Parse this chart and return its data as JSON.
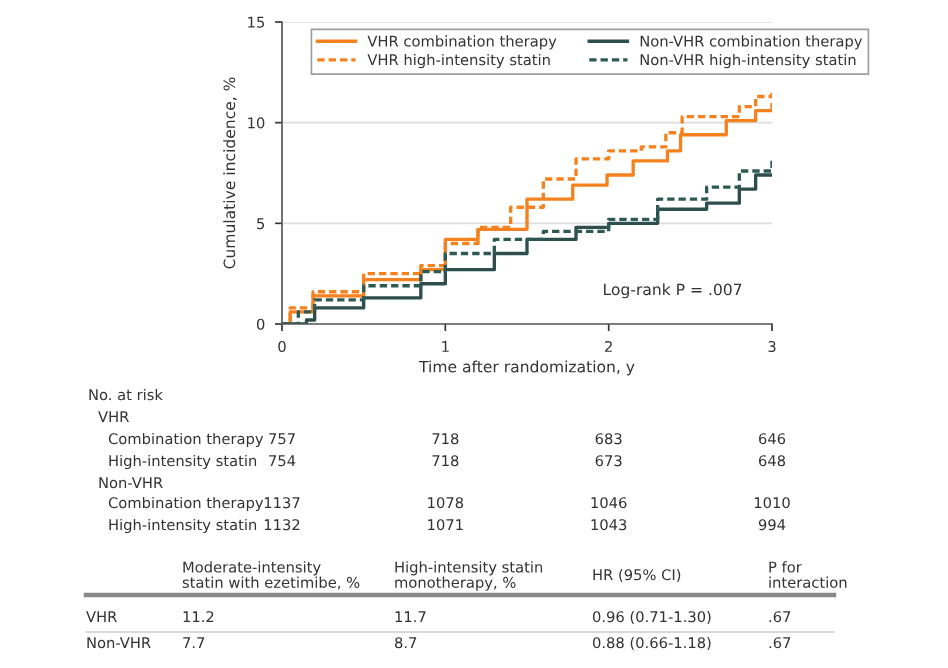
{
  "chart_data": {
    "type": "step",
    "xlabel": "Time after randomization, y",
    "ylabel": "Cumulative incidence, %",
    "xlim": [
      0,
      3
    ],
    "xticks": [
      0,
      1,
      2,
      3
    ],
    "ylim": [
      0,
      15
    ],
    "yticks": [
      0,
      5,
      10,
      15
    ],
    "grid": "y",
    "legend": "top",
    "series": [
      {
        "name": "VHR combination therapy",
        "color": "#f5821f",
        "line_style": "solid",
        "x": [
          0,
          0.05,
          0.19,
          0.5,
          0.85,
          1.0,
          1.2,
          1.5,
          1.78,
          1.99,
          2.15,
          2.36,
          2.44,
          2.72,
          2.9,
          3.0
        ],
        "values": [
          0,
          0.6,
          1.4,
          2.2,
          2.7,
          4.2,
          4.7,
          6.2,
          6.9,
          7.4,
          8.1,
          8.6,
          9.4,
          10.1,
          10.6,
          10.9
        ]
      },
      {
        "name": "VHR high-intensity statin",
        "color": "#f5821f",
        "line_style": "dashed",
        "x": [
          0,
          0.05,
          0.19,
          0.5,
          0.85,
          1.0,
          1.2,
          1.4,
          1.6,
          1.8,
          2.0,
          2.2,
          2.35,
          2.45,
          2.8,
          2.9,
          3.0
        ],
        "values": [
          0,
          0.8,
          1.6,
          2.5,
          2.9,
          4.0,
          4.8,
          5.8,
          7.2,
          8.2,
          8.6,
          8.8,
          9.5,
          10.3,
          10.8,
          11.3,
          11.6
        ]
      },
      {
        "name": "Non-VHR combination therapy",
        "color": "#2e4d4d",
        "line_style": "solid",
        "x": [
          0,
          0.15,
          0.2,
          0.5,
          0.85,
          1.0,
          1.3,
          1.5,
          1.8,
          2.0,
          2.3,
          2.6,
          2.8,
          2.9,
          3.0
        ],
        "values": [
          0,
          0.2,
          0.8,
          1.3,
          2.0,
          2.7,
          3.5,
          4.2,
          4.8,
          5.0,
          5.7,
          6.0,
          6.7,
          7.4,
          7.4
        ]
      },
      {
        "name": "Non-VHR high-intensity statin",
        "color": "#2e5a55",
        "line_style": "dashed",
        "x": [
          0,
          0.1,
          0.2,
          0.5,
          0.85,
          1.0,
          1.3,
          1.6,
          2.0,
          2.3,
          2.6,
          2.8,
          3.0
        ],
        "values": [
          0,
          0.6,
          1.2,
          1.9,
          2.6,
          3.5,
          4.2,
          4.6,
          5.2,
          6.2,
          6.8,
          7.6,
          8.2
        ]
      }
    ],
    "annotations": [
      "Log-rank P = .007",
      "No. at risk",
      "VHR",
      "Combination therapy",
      "757",
      "718",
      "683",
      "646",
      "High-intensity statin",
      "754",
      "718",
      "673",
      "648",
      "Non-VHR",
      "Combination therapy",
      "1137",
      "1078",
      "1046",
      "1010",
      "High-intensity statin",
      "1132",
      "1071",
      "1043",
      "994",
      "Moderate-intensity\nstatin with ezetimibe, %",
      "High-intensity statin\nmonotherapy, %",
      "HR (95% CI)",
      "P for\ninteraction",
      "VHR",
      "11.2",
      "11.7",
      "0.96 (0.71-1.30)",
      ".67",
      "Non-VHR",
      "7.7",
      "8.7",
      "0.88 (0.66-1.18)",
      ".67"
    ]
  }
}
